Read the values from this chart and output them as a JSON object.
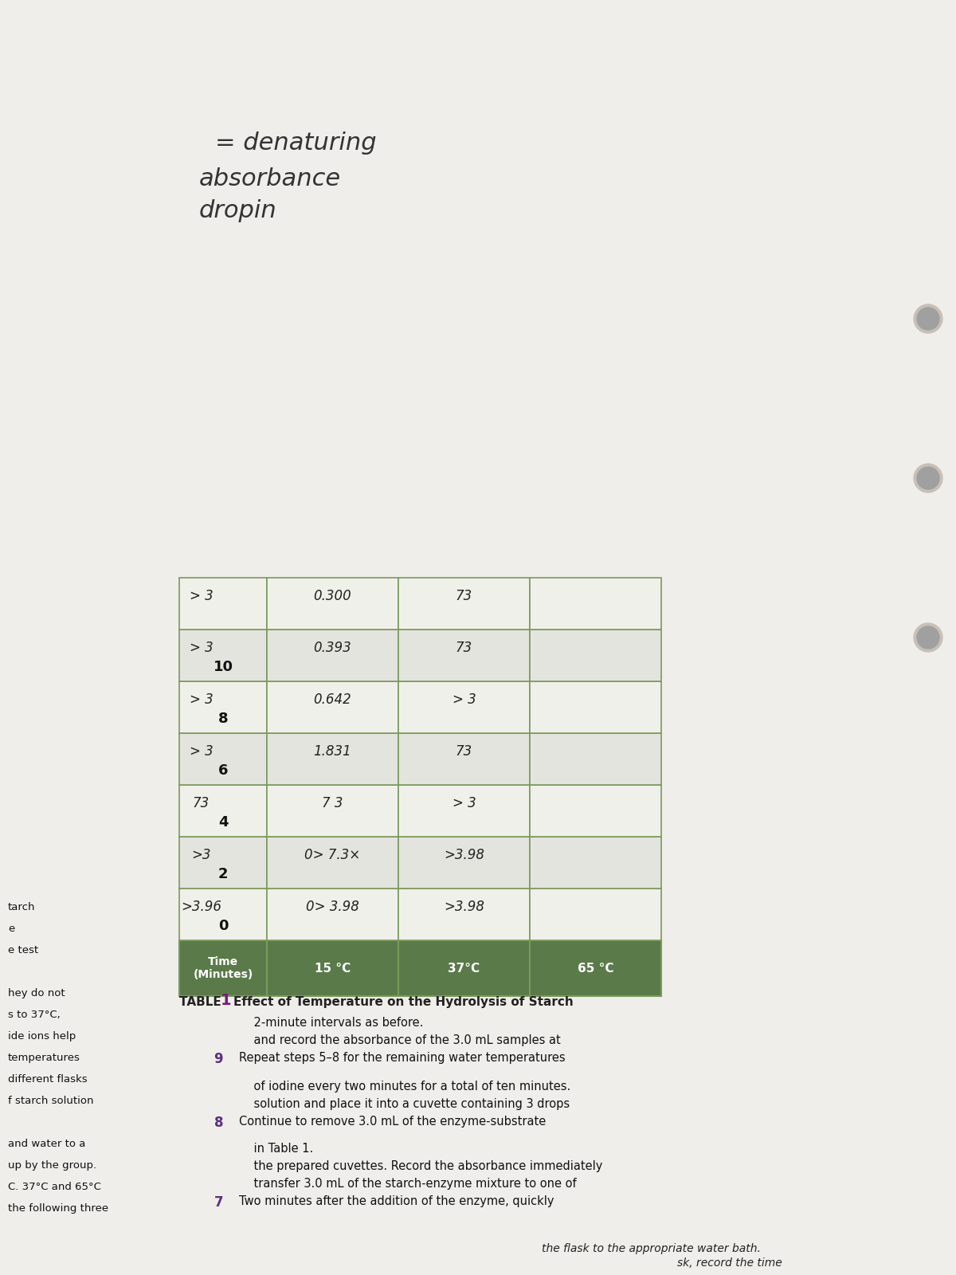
{
  "background_color": "#e8e4e0",
  "page_bg": "#f0eeeb",
  "title_text": "TABLE 1 Effect of Temperature on the Hydrolysis of Starch",
  "header_bg": "#5a7a4a",
  "header_text_color": "#ffffff",
  "row_bg_even": "#f5f5f0",
  "row_bg_odd": "#e8e8e2",
  "grid_color": "#7a9a5a",
  "col_headers": [
    "Time\n(Minutes)",
    "15 °C",
    "37°C",
    "65 °C"
  ],
  "rows": [
    [
      "0",
      ">3.96",
      "0> 3.98",
      ">3.98"
    ],
    [
      "2",
      ">3",
      "0> 7.3 ×",
      ">3.98"
    ],
    [
      "4",
      "73",
      "7 3",
      "> 3"
    ],
    [
      "6",
      "> 3",
      "1.831",
      "73"
    ],
    [
      "8",
      "> 3",
      "0.642",
      "> 3"
    ],
    [
      "10",
      "> 3",
      "0.393",
      "73"
    ],
    [
      "",
      "> 3",
      "0.300",
      "73"
    ]
  ],
  "instruction_lines": [
    "7  Two minutes after the addition of the enzyme, quickly",
    "    transfer 3.0 mL of the starch-enzyme mixture to one of",
    "    the prepared cuvettes. Record the absorbance immediately",
    "    in Table 1.",
    "8  Continue to remove 3.0 mL of the enzyme-substrate",
    "    solution and place it into a cuvette containing 3 drops",
    "    of iodine every two minutes for a total of ten minutes.",
    "9  Repeat steps 5–8 for the remaining water temperatures",
    "    and record the absorbance of the 3.0 mL samples at",
    "    2-minute intervals as before."
  ],
  "left_side_lines": [
    "the following three",
    "C. 37°C and 65°C",
    "up by the group.",
    "and water to a",
    "",
    "f starch solution",
    "different flasks",
    "temperatures",
    "ide ions help",
    "s to 37°C,",
    "hey do not",
    "",
    "e test",
    "e",
    "tarch"
  ],
  "handwritten_note": "dropin\nabsorbance\n= denaturing",
  "top_partial_lines": [
    "    the flask to the appropriate water bath.",
    "    sk, record the time"
  ],
  "note_numbers": [
    "10",
    "6",
    "8",
    "2"
  ]
}
